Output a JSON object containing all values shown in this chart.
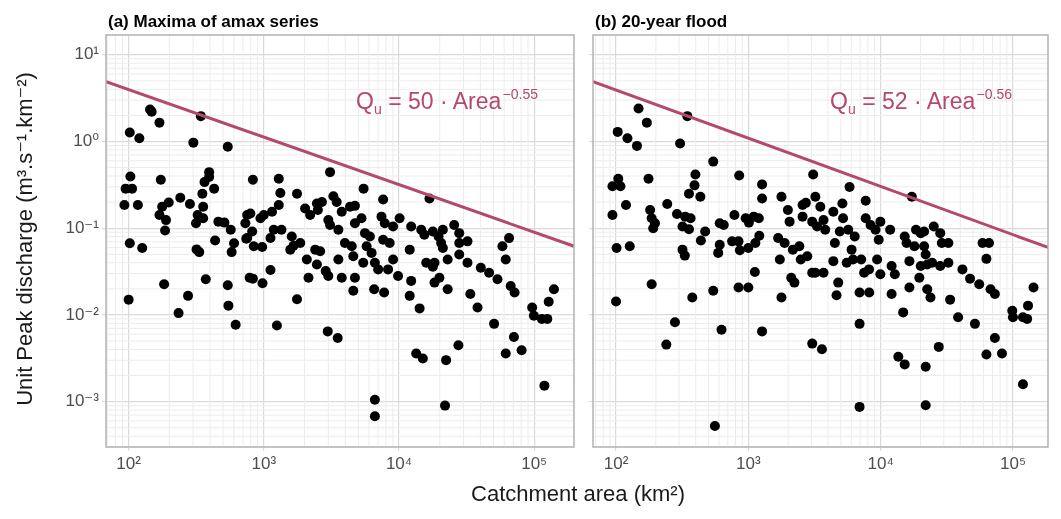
{
  "chart_data": [
    {
      "type": "scatter",
      "title": "(a) Maxima of amax series",
      "xlabel": "Catchment area (km²)",
      "ylabel": "Unit Peak discharge (m³.s⁻¹.km⁻²)",
      "log": "xy",
      "grid": true,
      "xlim": [
        68,
        197000
      ],
      "ylim": [
        0.00032,
        16.9
      ],
      "xticks": [
        {
          "value": 100,
          "label": "10²"
        },
        {
          "value": 1000,
          "label": "10³"
        },
        {
          "value": 10000,
          "label": "10⁴"
        },
        {
          "value": 100000,
          "label": "10⁵"
        }
      ],
      "yticks": [
        {
          "value": 0.001,
          "label": "10⁻³"
        },
        {
          "value": 0.01,
          "label": "10⁻²"
        },
        {
          "value": 0.1,
          "label": "10⁻¹"
        },
        {
          "value": 1,
          "label": "10⁰"
        },
        {
          "value": 10,
          "label": "10¹"
        }
      ],
      "annotations": [
        "Q$_{u}$ = 50 · Area$^{−0.55}$"
      ],
      "series": [
        {
          "type": "scatter",
          "marker": "circle",
          "color": "#000000",
          "x": [
            100,
            102,
            120,
            144,
            148,
            169,
            342,
            301,
            541,
            103,
            95,
            106,
            93,
            117,
            102,
            126,
            173,
            177,
            198,
            169,
            189,
            186,
            183,
            241,
            275,
            234,
            284,
            315,
            324,
            356,
            351,
            364,
            394,
            394,
            429,
            356,
            318,
            333,
            372,
            461,
            436,
            541,
            547,
            619,
            511,
            569,
            602,
            578,
            741,
            753,
            785,
            830,
            1290,
            1325,
            1290,
            1150,
            1000,
            944,
            795,
            730,
            820,
            753,
            843,
            972,
            1120,
            1185,
            1350,
            1120,
            830,
            978,
            1250,
            1760,
            1760,
            1610,
            1570,
            1660,
            1860,
            2080,
            2140,
            2020,
            2200,
            2510,
            2470,
            2690,
            2400,
            2610,
            2470,
            2870,
            3000,
            3090,
            3270,
            3460,
            3000,
            3090,
            3560,
            3770,
            4340,
            4720,
            5280,
            4720,
            3980,
            4470,
            4590,
            3560,
            3770,
            4590,
            4720,
            2970,
            3520,
            5470,
            5600,
            6090,
            5760,
            6270,
            5440,
            6630,
            6550,
            7630,
            7420,
            7850,
            9040,
            10100,
            8530,
            7630,
            7010,
            8300,
            9040,
            9840,
            7760,
            6630,
            6630,
            12300,
            12000,
            12300,
            12000,
            14200,
            13400,
            15000,
            16800,
            14600,
            15400,
            15900,
            18300,
            17800,
            19600,
            21100,
            20500,
            21100,
            22900,
            18300,
            17800,
            19900,
            22900,
            25600,
            27900,
            27900,
            32100,
            27900,
            32100,
            40300,
            46400,
            53500,
            33700,
            38100,
            22300,
            27500,
            21900,
            50500,
            58200,
            65200,
            61600,
            67000,
            71600,
            70800,
            61600,
            80700,
            96600,
            99500,
            114000,
            125000,
            128000,
            140000,
            119000
          ],
          "values": [
            0.015,
            1.27,
            1.09,
            2.34,
            2.2,
            1.65,
            1.96,
            0.97,
            0.87,
            0.395,
            0.286,
            0.286,
            0.185,
            0.185,
            0.067,
            0.059,
            0.362,
            0.177,
            0.198,
            0.142,
            0.124,
            0.094,
            0.0226,
            0.224,
            0.0166,
            0.0105,
            0.19,
            0.114,
            0.142,
            0.177,
            0.25,
            0.34,
            0.443,
            0.389,
            0.286,
            0.13,
            0.057,
            0.053,
            0.0258,
            0.119,
            0.072,
            0.022,
            0.0128,
            0.0077,
            0.116,
            0.096,
            0.067,
            0.053,
            0.0755,
            0.142,
            0.0269,
            0.362,
            0.372,
            0.255,
            0.185,
            0.155,
            0.142,
            0.13,
            0.148,
            0.114,
            0.0917,
            0.077,
            0.0618,
            0.0607,
            0.077,
            0.0958,
            0.0958,
            0.0329,
            0.0262,
            0.0232,
            0.00755,
            0.25,
            0.0152,
            0.0804,
            0.0566,
            0.0629,
            0.0675,
            0.0435,
            0.0269,
            0.169,
            0.142,
            0.162,
            0.193,
            0.201,
            0.0566,
            0.0542,
            0.0382,
            0.032,
            0.0281,
            0.443,
            0.234,
            0.201,
            0.124,
            0.109,
            0.0958,
            0.155,
            0.177,
            0.181,
            0.13,
            0.114,
            0.0675,
            0.0618,
            0.0475,
            0.0435,
            0.0269,
            0.019,
            0.0269,
            0.00646,
            0.00542,
            0.286,
            0.0877,
            0.0804,
            0.0618,
            0.0519,
            0.0399,
            0.0399,
            0.0198,
            0.214,
            0.136,
            0.114,
            0.1045,
            0.13,
            0.0675,
            0.0736,
            0.0335,
            0.0335,
            0.0435,
            0.0281,
            0.0181,
            0.00105,
            0.00068,
            0.1045,
            0.0566,
            0.0247,
            0.0166,
            0.0119,
            0.00359,
            0.00315,
            0.22,
            0.0958,
            0.084,
            0.0399,
            0.0236,
            0.0917,
            0.0804,
            0.0958,
            0.0675,
            0.0591,
            0.0435,
            0.0399,
            0.0359,
            0.0269,
            0.0198,
            0.109,
            0.0877,
            0.0675,
            0.0705,
            0.0497,
            0.0399,
            0.035,
            0.0307,
            0.0258,
            0.0174,
            0.0122,
            0.00301,
            0.00447,
            0.0009,
            0.00789,
            0.0618,
            0.0769,
            0.0435,
            0.0216,
            0.0181,
            0.00556,
            0.00359,
            0.00392,
            0.0122,
            0.0098,
            0.009,
            0.009,
            0.0142,
            0.0198,
            0.00153
          ]
        },
        {
          "type": "line",
          "marker": "none",
          "color": "#b5486f",
          "x": [
            68,
            197000
          ],
          "values": [
            4.9,
            0.062
          ]
        }
      ]
    },
    {
      "type": "scatter",
      "title": "(b) 20-year flood",
      "log": "xy",
      "grid": true,
      "tick_labels": "x",
      "xlim": [
        67,
        184000
      ],
      "ylim": [
        0.00032,
        16.9
      ],
      "xticks": [
        {
          "value": 100,
          "label": "10²"
        },
        {
          "value": 1000,
          "label": "10³"
        },
        {
          "value": 10000,
          "label": "10⁴"
        },
        {
          "value": 100000,
          "label": "10⁵"
        }
      ],
      "yticks": [
        {
          "value": 0.001,
          "label": null
        },
        {
          "value": 0.01,
          "label": null
        },
        {
          "value": 0.1,
          "label": null
        },
        {
          "value": 1,
          "label": null
        },
        {
          "value": 10,
          "label": null
        }
      ],
      "annotations": [
        "Q$_{u}$ = 52 · Area$^{−0.56}$"
      ],
      "series": [
        {
          "type": "scatter",
          "marker": "circle",
          "color": "#000000",
          "x": [
            148,
            171,
            346,
            103,
            122,
            144,
            305,
            543,
            104,
            94,
            108,
            176,
            119,
            94,
            101,
            127,
            100,
            186,
            181,
            186,
            197,
            191,
            244,
            279,
            240,
            289,
            333,
            366,
            318,
            356,
            318,
            331,
            398,
            392,
            356,
            434,
            472,
            438,
            377,
            543,
            559,
            608,
            652,
            608,
            592,
            627,
            853,
            785,
            754,
            843,
            863,
            1000,
            843,
            1000,
            1120,
            955,
            1010,
            1100,
            1200,
            1130,
            1210,
            1270,
            1270,
            1270,
            1780,
            1780,
            1990,
            2050,
            1680,
            1880,
            1730,
            2170,
            2110,
            2230,
            2430,
            2570,
            2720,
            2570,
            2490,
            2790,
            3090,
            3210,
            3040,
            3310,
            3040,
            3210,
            3040,
            3600,
            3500,
            3700,
            3810,
            3700,
            4390,
            4510,
            4390,
            4780,
            4640,
            5140,
            5200,
            4910,
            5820,
            5690,
            6030,
            6370,
            5540,
            6190,
            6930,
            6930,
            6930,
            8200,
            7130,
            7710,
            7710,
            8390,
            7500,
            8170,
            9150,
            9950,
            9670,
            9400,
            9950,
            12100,
            12100,
            12800,
            14800,
            13600,
            15200,
            11800,
            15200,
            17200,
            15700,
            16500,
            16500,
            18500,
            18000,
            20100,
            21300,
            21300,
            21900,
            20100,
            19600,
            22500,
            23800,
            22500,
            24500,
            25200,
            28200,
            29000,
            32500,
            28200,
            32500,
            33500,
            38500,
            27500,
            21900,
            21900,
            41500,
            47400,
            55600,
            67700,
            73000,
            58900,
            65900,
            63000,
            51600,
            73000,
            63000,
            82600,
            98800,
            100000,
            119000,
            128000,
            130000,
            143000,
            119000
          ],
          "values": [
            2.4,
            1.65,
            1.96,
            1.29,
            1.09,
            0.89,
            0.95,
            0.586,
            0.372,
            0.304,
            0.304,
            0.372,
            0.185,
            0.142,
            0.0591,
            0.0618,
            0.0143,
            0.0226,
            0.162,
            0.13,
            0.114,
            0.1,
            0.19,
            0.00825,
            0.00455,
            0.146,
            0.136,
            0.13,
            0.1045,
            0.0975,
            0.0566,
            0.0483,
            0.417,
            0.312,
            0.25,
            0.23,
            0.0917,
            0.0723,
            0.0159,
            0.019,
            0.000523,
            0.114,
            0.109,
            0.0646,
            0.0519,
            0.00675,
            0.406,
            0.142,
            0.0705,
            0.0705,
            0.0556,
            0.0591,
            0.0207,
            0.0207,
            0.0312,
            0.13,
            0.116,
            0.136,
            0.13,
            0.0675,
            0.0818,
            0.32,
            0.22,
            0.00646,
            0.23,
            0.0159,
            0.162,
            0.119,
            0.077,
            0.0675,
            0.0435,
            0.0566,
            0.0269,
            0.0236,
            0.0618,
            0.185,
            0.196,
            0.136,
            0.0435,
            0.0475,
            0.417,
            0.23,
            0.119,
            0.1045,
            0.0307,
            0.0307,
            0.00467,
            0.00402,
            0.177,
            0.124,
            0.0958,
            0.0307,
            0.155,
            0.0675,
            0.0417,
            0.0236,
            0.0169,
            0.193,
            0.13,
            0.0917,
            0.299,
            0.0958,
            0.0566,
            0.0804,
            0.0399,
            0.0435,
            0.00789,
            0.00087,
            0.0181,
            0.0181,
            0.0435,
            0.207,
            0.13,
            0.109,
            0.0307,
            0.0335,
            0.0958,
            0.119,
            0.0736,
            0.0435,
            0.0294,
            0.0366,
            0.0174,
            0.0294,
            0.0107,
            0.00329,
            0.00269,
            0.0958,
            0.0804,
            0.23,
            0.0675,
            0.0417,
            0.0207,
            0.0958,
            0.0618,
            0.0877,
            0.0917,
            0.0618,
            0.0497,
            0.0366,
            0.0269,
            0.0198,
            0.0159,
            0.0382,
            0.0399,
            0.1045,
            0.0877,
            0.0675,
            0.0675,
            0.0366,
            0.0399,
            0.015,
            0.0094,
            0.00428,
            0.00253,
            0.00091,
            0.0335,
            0.0262,
            0.0226,
            0.0198,
            0.0174,
            0.0675,
            0.0675,
            0.0443,
            0.00789,
            0.00542,
            0.0035,
            0.00359,
            0.0112,
            0.0094,
            0.0094,
            0.009,
            0.0128,
            0.0207,
            0.00159
          ]
        },
        {
          "type": "line",
          "marker": "none",
          "color": "#b5486f",
          "x": [
            67,
            184000
          ],
          "values": [
            4.9,
            0.06
          ]
        }
      ]
    }
  ]
}
